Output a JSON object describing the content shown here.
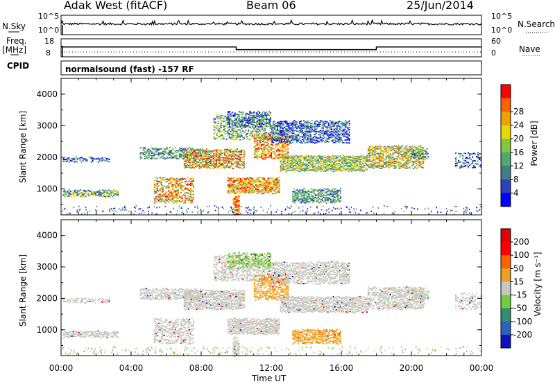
{
  "header": {
    "station": "Adak West (fitACF)",
    "beam": "Beam 06",
    "date": "25/Jun/2014"
  },
  "summary": {
    "nsky_label": "N.Sky",
    "nsky_ticks": [
      "10^5",
      "10^0"
    ],
    "nsearch_label": "N.Search",
    "nsearch_ticks": [
      "10^5",
      "10^0"
    ],
    "freq_label": "Freq.",
    "freq_unit": "[MHz]",
    "freq_ticks": [
      "18",
      "8"
    ],
    "nave_label": "Nave",
    "nave_ticks": [
      "60",
      "0"
    ],
    "cpid_label": "CPID",
    "cpid_text": "normalsound (fast) -157 RF",
    "freq_segments": [
      {
        "start": 0,
        "end": 10,
        "value": 13.5
      },
      {
        "start": 10,
        "end": 18,
        "value": 12.0
      },
      {
        "start": 18,
        "end": 24,
        "value": 13.5
      }
    ]
  },
  "chart_data": [
    {
      "type": "heatmap",
      "name": "power",
      "ylabel": "Slant Range [km]",
      "yticks": [
        "1000",
        "2000",
        "3000",
        "4000"
      ],
      "colorbar_label": "Power [dB]",
      "colorbar_ticks": [
        "4",
        "8",
        "12",
        "16",
        "20",
        "24",
        "28"
      ],
      "colorbar_colors": [
        "#0000ff",
        "#2f3fc0",
        "#3f7f7f",
        "#4fa86f",
        "#7fc83f",
        "#e8d800",
        "#f0a000",
        "#ff6000",
        "#ff0000"
      ],
      "xlim": [
        0,
        24
      ],
      "ylim": [
        180,
        4500
      ]
    },
    {
      "type": "heatmap",
      "name": "velocity",
      "ylabel": "Slant Range [km]",
      "yticks": [
        "1000",
        "2000",
        "3000",
        "4000"
      ],
      "colorbar_label": "Velocity [m s⁻¹]",
      "colorbar_ticks": [
        "200",
        "100",
        "50",
        "15",
        "-15",
        "-50",
        "-100",
        "-200"
      ],
      "colorbar_colors": [
        "#1010c0",
        "#2f5fc0",
        "#2f8f6f",
        "#6fcf3f",
        "#c8c8c0",
        "#f0a020",
        "#ff6000",
        "#ff0000",
        "#e00000"
      ],
      "xlim": [
        0,
        24
      ],
      "ylim": [
        180,
        4500
      ]
    }
  ],
  "xaxis": {
    "label": "Time UT",
    "ticks": [
      "00:00",
      "04:00",
      "08:00",
      "12:00",
      "16:00",
      "20:00",
      "00:00"
    ]
  },
  "ground_color": "#c8c8c0"
}
